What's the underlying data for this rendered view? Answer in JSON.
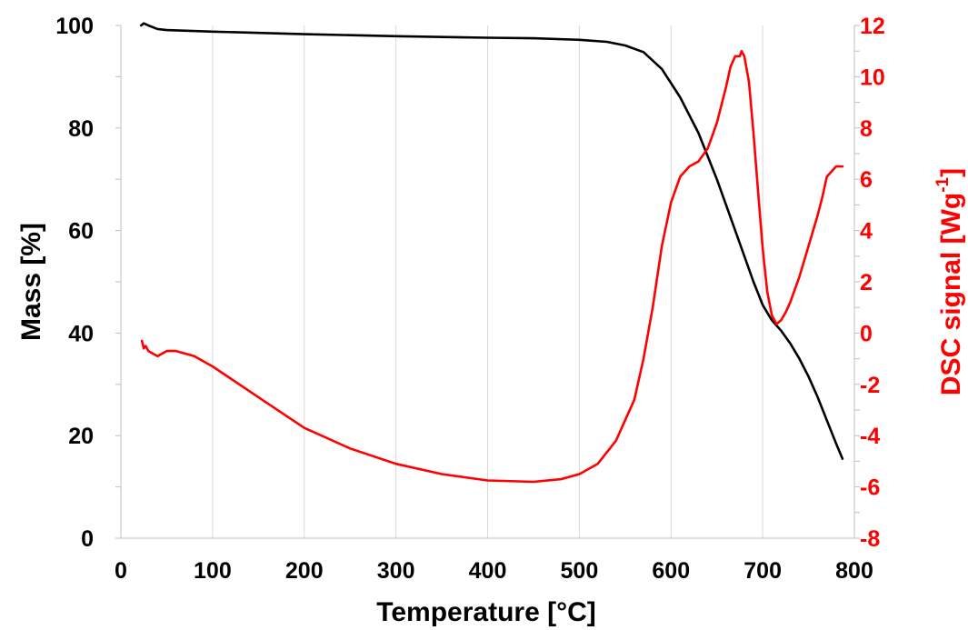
{
  "chart_data": {
    "type": "line",
    "title": "",
    "xlabel": "Temperature [°C]",
    "ylabel_left": "Mass [%]",
    "ylabel_right_prefix": "DSC signal [Wg",
    "ylabel_right_sup": "-1",
    "ylabel_right_suffix": "]",
    "xlim": [
      0,
      800
    ],
    "ylim_left": [
      0,
      100
    ],
    "ylim_right": [
      -8,
      12
    ],
    "x_ticks": [
      "0",
      "100",
      "200",
      "300",
      "400",
      "500",
      "600",
      "700",
      "800"
    ],
    "y_left_ticks": [
      "0",
      "20",
      "40",
      "60",
      "80",
      "100"
    ],
    "y_right_ticks": [
      "-8",
      "-6",
      "-4",
      "-2",
      "0",
      "2",
      "4",
      "6",
      "8",
      "10",
      "12"
    ],
    "grid": "vertical",
    "series": [
      {
        "axis": "left",
        "color": "#000000",
        "x": [
          22,
          25,
          30,
          40,
          50,
          100,
          200,
          300,
          400,
          450,
          500,
          530,
          550,
          570,
          590,
          610,
          630,
          650,
          670,
          690,
          700,
          710,
          720,
          730,
          740,
          750,
          760,
          770,
          780,
          787
        ],
        "y": [
          100.0,
          100.4,
          100.0,
          99.3,
          99.1,
          98.8,
          98.3,
          97.9,
          97.6,
          97.5,
          97.2,
          96.8,
          96.1,
          94.8,
          91.5,
          86.0,
          79.0,
          70.0,
          60.0,
          50.0,
          45.5,
          42.5,
          40.5,
          38.0,
          35.0,
          31.5,
          27.5,
          23.0,
          18.5,
          15.5
        ]
      },
      {
        "axis": "right",
        "color": "#ff0000",
        "x": [
          23,
          25,
          27,
          30,
          35,
          40,
          45,
          50,
          60,
          80,
          100,
          150,
          200,
          250,
          300,
          350,
          400,
          450,
          480,
          500,
          520,
          540,
          560,
          570,
          580,
          590,
          600,
          610,
          620,
          630,
          640,
          650,
          660,
          665,
          670,
          675,
          677,
          680,
          685,
          690,
          695,
          700,
          705,
          710,
          715,
          720,
          725,
          730,
          740,
          750,
          760,
          765,
          770,
          780,
          787
        ],
        "y": [
          -0.3,
          -0.6,
          -0.5,
          -0.7,
          -0.8,
          -0.9,
          -0.8,
          -0.7,
          -0.7,
          -0.9,
          -1.3,
          -2.5,
          -3.7,
          -4.5,
          -5.1,
          -5.5,
          -5.75,
          -5.8,
          -5.7,
          -5.5,
          -5.1,
          -4.2,
          -2.6,
          -1.0,
          1.0,
          3.4,
          5.1,
          6.1,
          6.5,
          6.7,
          7.2,
          8.2,
          9.6,
          10.4,
          10.8,
          10.8,
          11.0,
          10.8,
          9.8,
          7.8,
          5.5,
          3.3,
          1.6,
          0.7,
          0.35,
          0.5,
          0.8,
          1.2,
          2.2,
          3.4,
          4.6,
          5.3,
          6.1,
          6.5,
          6.5
        ]
      }
    ]
  }
}
